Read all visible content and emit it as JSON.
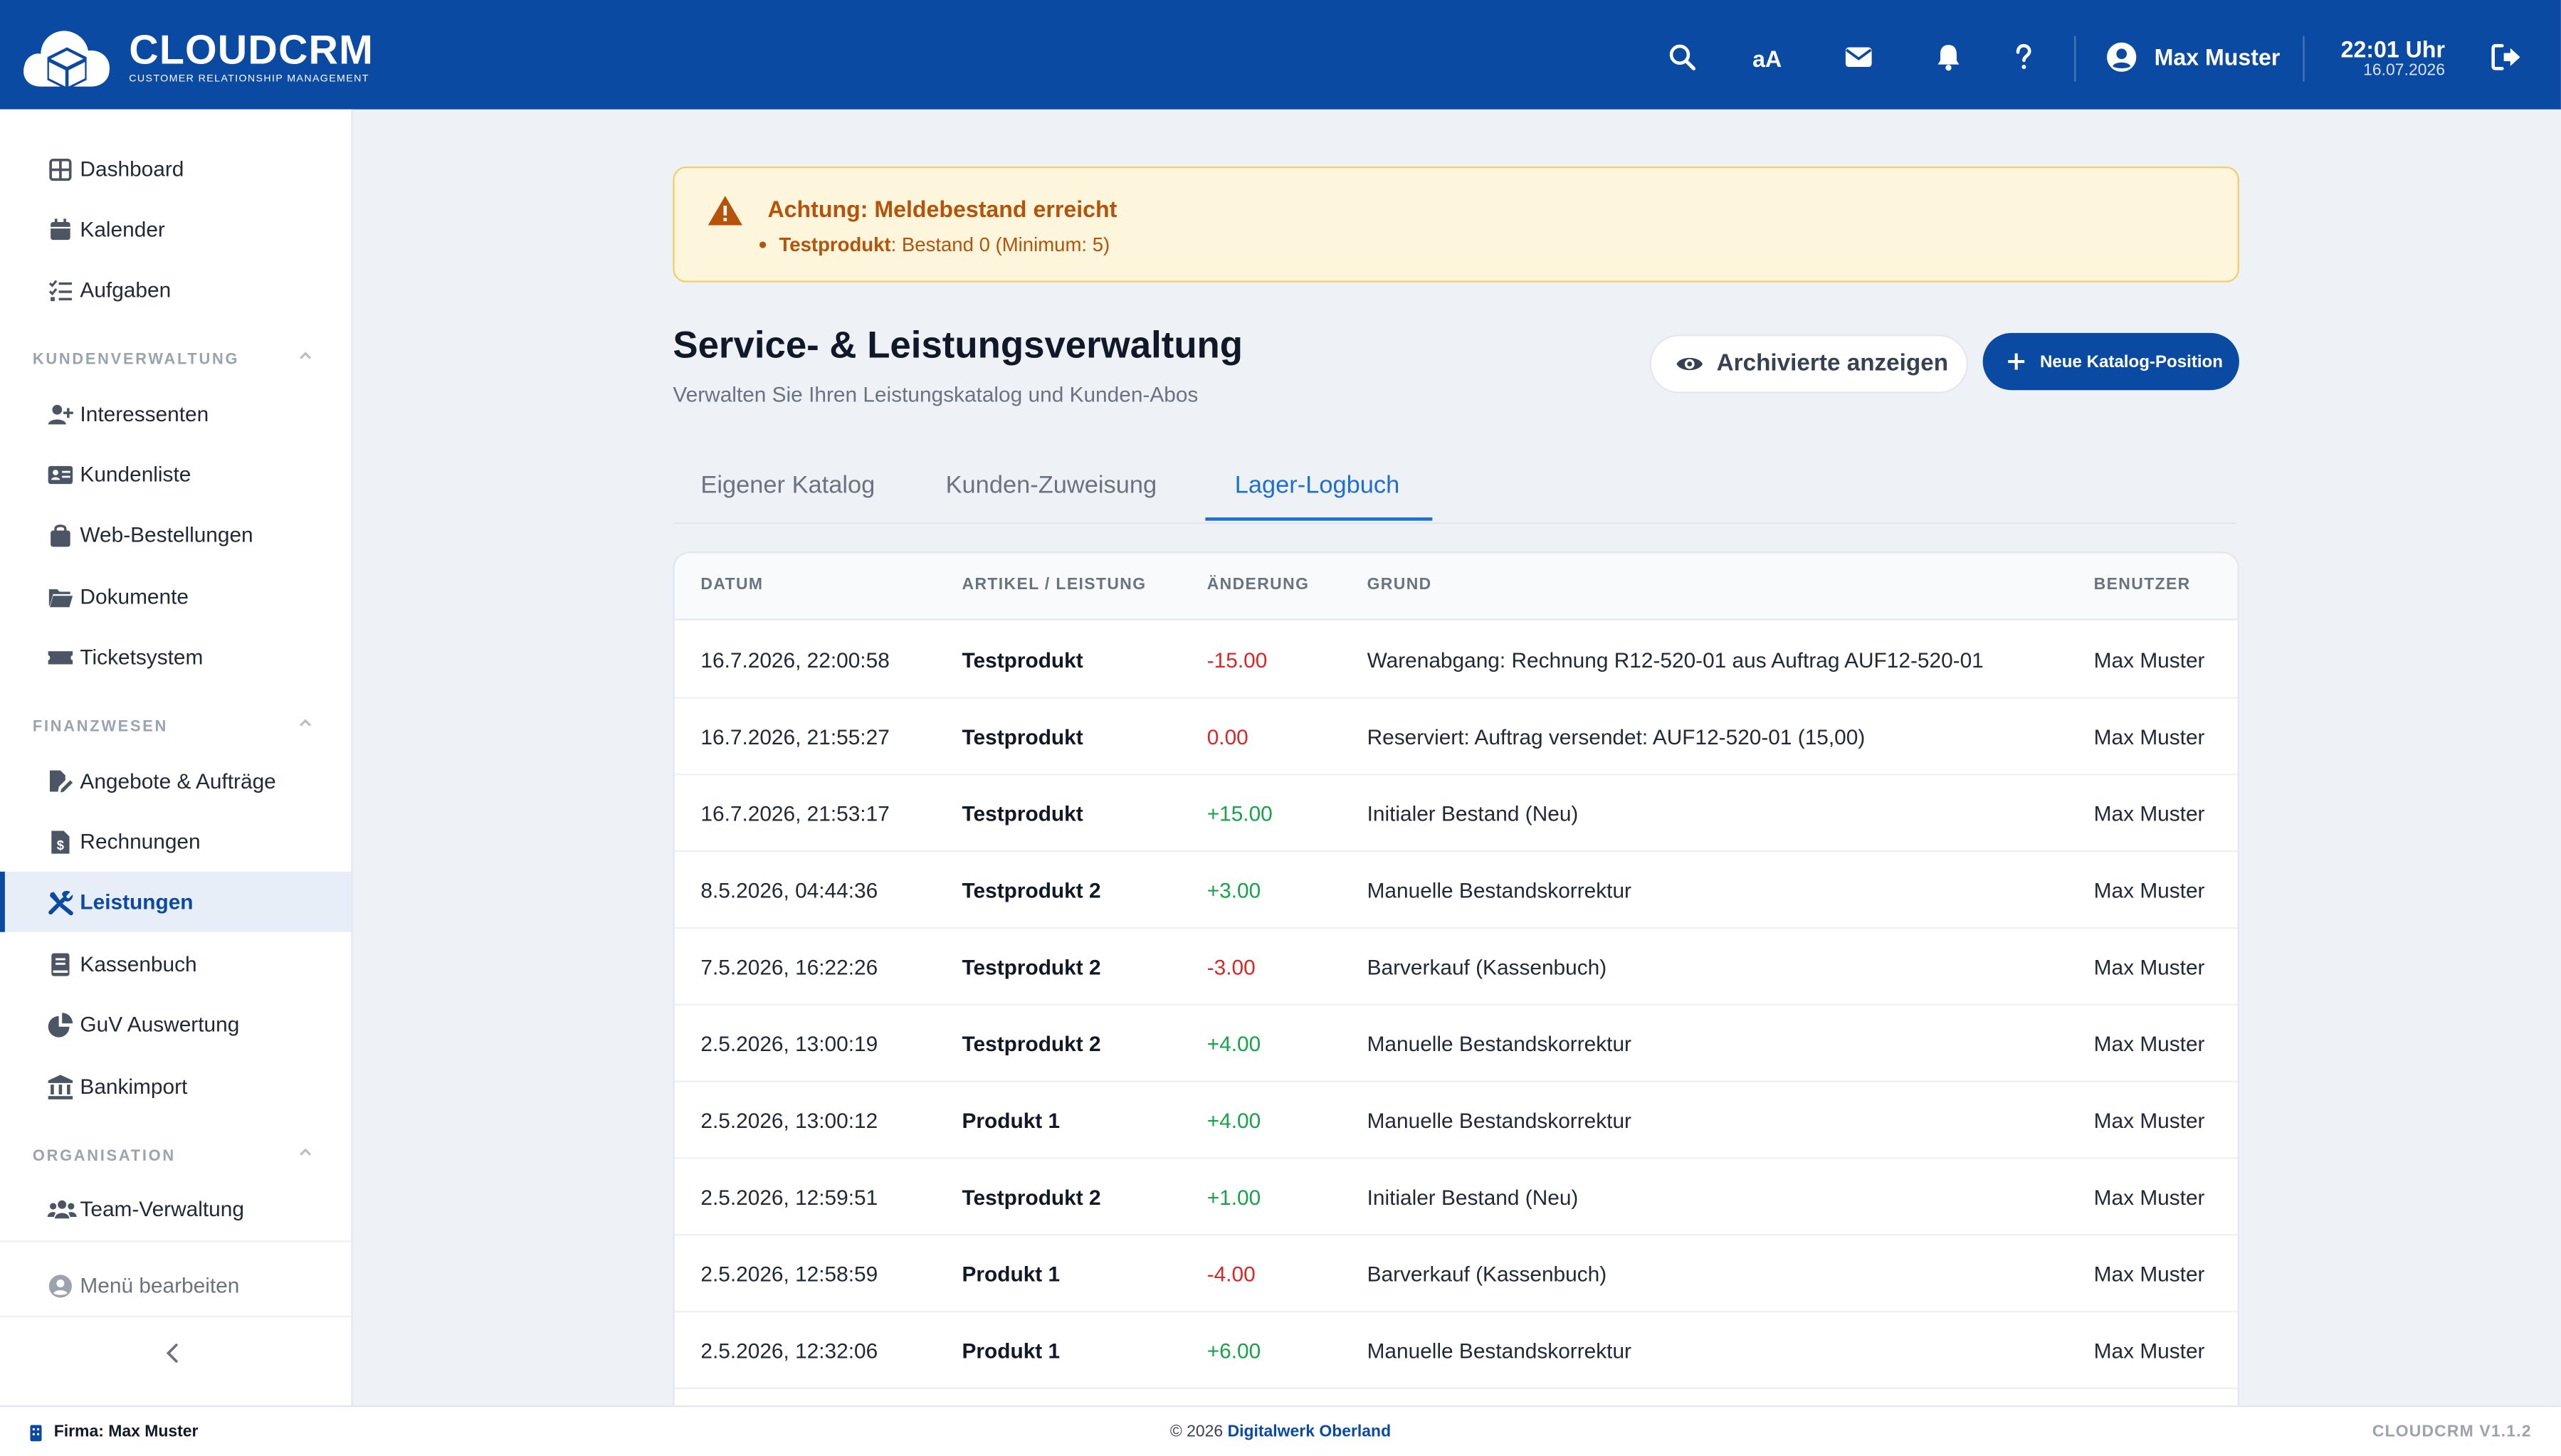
{
  "brand": {
    "name": "CLOUDCRM",
    "tagline": "CUSTOMER RELATIONSHIP MANAGEMENT"
  },
  "topbar": {
    "text_size_label": "aA",
    "user_name": "Max Muster",
    "time": "22:01 Uhr",
    "date": "16.07.2026",
    "icons": [
      "search-icon",
      "text-size-icon",
      "mail-icon",
      "bell-icon",
      "help-icon",
      "user-avatar-icon",
      "logout-icon"
    ]
  },
  "sidebar": {
    "items": [
      {
        "label": "Dashboard",
        "icon": "dashboard-icon"
      },
      {
        "label": "Kalender",
        "icon": "calendar-icon"
      },
      {
        "label": "Aufgaben",
        "icon": "tasks-icon"
      }
    ],
    "sections": [
      {
        "title": "KUNDENVERWALTUNG",
        "items": [
          {
            "label": "Interessenten",
            "icon": "user-plus-icon"
          },
          {
            "label": "Kundenliste",
            "icon": "address-card-icon"
          },
          {
            "label": "Web-Bestellungen",
            "icon": "shopping-bag-icon"
          },
          {
            "label": "Dokumente",
            "icon": "folder-icon"
          },
          {
            "label": "Ticketsystem",
            "icon": "ticket-icon"
          }
        ]
      },
      {
        "title": "FINANZWESEN",
        "items": [
          {
            "label": "Angebote & Aufträge",
            "icon": "file-signature-icon"
          },
          {
            "label": "Rechnungen",
            "icon": "invoice-icon"
          },
          {
            "label": "Leistungen",
            "icon": "tools-icon",
            "active": true
          },
          {
            "label": "Kassenbuch",
            "icon": "book-icon"
          },
          {
            "label": "GuV Auswertung",
            "icon": "pie-chart-icon"
          },
          {
            "label": "Bankimport",
            "icon": "bank-icon"
          }
        ]
      },
      {
        "title": "ORGANISATION",
        "items": [
          {
            "label": "Team-Verwaltung",
            "icon": "users-icon"
          }
        ]
      }
    ],
    "edit_menu": "Menü bearbeiten"
  },
  "alert": {
    "title": "Achtung: Meldebestand erreicht",
    "product": "Testprodukt",
    "detail": ": Bestand 0 (Minimum: 5)"
  },
  "page": {
    "title": "Service- & Leistungsverwaltung",
    "subtitle": "Verwalten Sie Ihren Leistungskatalog und Kunden-Abos",
    "archive_button": "Archivierte anzeigen",
    "new_button": "Neue Katalog-Position"
  },
  "tabs": [
    {
      "label": "Eigener Katalog"
    },
    {
      "label": "Kunden-Zuweisung"
    },
    {
      "label": "Lager-Logbuch",
      "active": true
    }
  ],
  "table": {
    "columns": [
      "DATUM",
      "ARTIKEL / LEISTUNG",
      "ÄNDERUNG",
      "GRUND",
      "BENUTZER"
    ],
    "rows": [
      {
        "date": "16.7.2026, 22:00:58",
        "article": "Testprodukt",
        "change": "-15.00",
        "reason": "Warenabgang: Rechnung R12-520-01 aus Auftrag AUF12-520-01",
        "user": "Max Muster"
      },
      {
        "date": "16.7.2026, 21:55:27",
        "article": "Testprodukt",
        "change": "0.00",
        "reason": "Reserviert: Auftrag versendet: AUF12-520-01 (15,00)",
        "user": "Max Muster"
      },
      {
        "date": "16.7.2026, 21:53:17",
        "article": "Testprodukt",
        "change": "+15.00",
        "reason": "Initialer Bestand (Neu)",
        "user": "Max Muster"
      },
      {
        "date": "8.5.2026, 04:44:36",
        "article": "Testprodukt 2",
        "change": "+3.00",
        "reason": "Manuelle Bestandskorrektur",
        "user": "Max Muster"
      },
      {
        "date": "7.5.2026, 16:22:26",
        "article": "Testprodukt 2",
        "change": "-3.00",
        "reason": "Barverkauf (Kassenbuch)",
        "user": "Max Muster"
      },
      {
        "date": "2.5.2026, 13:00:19",
        "article": "Testprodukt 2",
        "change": "+4.00",
        "reason": "Manuelle Bestandskorrektur",
        "user": "Max Muster"
      },
      {
        "date": "2.5.2026, 13:00:12",
        "article": "Produkt 1",
        "change": "+4.00",
        "reason": "Manuelle Bestandskorrektur",
        "user": "Max Muster"
      },
      {
        "date": "2.5.2026, 12:59:51",
        "article": "Testprodukt 2",
        "change": "+1.00",
        "reason": "Initialer Bestand (Neu)",
        "user": "Max Muster"
      },
      {
        "date": "2.5.2026, 12:58:59",
        "article": "Produkt 1",
        "change": "-4.00",
        "reason": "Barverkauf (Kassenbuch)",
        "user": "Max Muster"
      },
      {
        "date": "2.5.2026, 12:32:06",
        "article": "Produkt 1",
        "change": "+6.00",
        "reason": "Manuelle Bestandskorrektur",
        "user": "Max Muster"
      }
    ]
  },
  "footer": {
    "firm": "Firma: Max Muster",
    "copyright": "© 2026",
    "company": "Digitalwerk Oberland",
    "version": "CLOUDCRM V1.1.2"
  },
  "colors": {
    "primary": "#0b4aa2",
    "tab_active": "#1e6fd0",
    "positive": "#16a34a",
    "negative": "#dc2626",
    "warning": "#b45309",
    "warning_bg": "#fdf6dc"
  }
}
